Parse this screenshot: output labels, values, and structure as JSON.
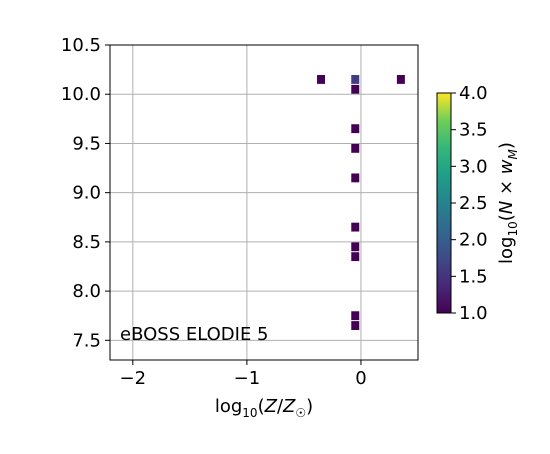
{
  "chart_data": {
    "type": "heatmap",
    "xlabel": "log10(Z/Z⊙)",
    "annotation": "eBOSS ELODIE 5",
    "xlim": [
      -2.2,
      0.5
    ],
    "ylim": [
      7.3,
      10.5
    ],
    "xticks": [
      -2,
      -1,
      0
    ],
    "xtick_labels": [
      "−2",
      "−1",
      "0"
    ],
    "yticks": [
      7.5,
      8.0,
      8.5,
      9.0,
      9.5,
      10.0,
      10.5
    ],
    "ytick_labels": [
      "7.5",
      "8.0",
      "8.5",
      "9.0",
      "9.5",
      "10.0",
      "10.5"
    ],
    "grid": true,
    "colorbar": {
      "label": "log10(N × wM)",
      "range": [
        1.0,
        4.0
      ],
      "ticks": [
        1.0,
        1.5,
        2.0,
        2.5,
        3.0,
        3.5,
        4.0
      ],
      "tick_labels": [
        "1.0",
        "1.5",
        "2.0",
        "2.5",
        "3.0",
        "3.5",
        "4.0"
      ],
      "colormap": "viridis"
    },
    "cell_size": {
      "dx": 0.07,
      "dy": 0.09
    },
    "points": [
      {
        "x": -0.35,
        "y": 10.15,
        "value": 1.0
      },
      {
        "x": -0.05,
        "y": 10.15,
        "value": 1.6
      },
      {
        "x": 0.35,
        "y": 10.15,
        "value": 1.0
      },
      {
        "x": -0.05,
        "y": 10.05,
        "value": 1.0
      },
      {
        "x": -0.05,
        "y": 9.65,
        "value": 1.0
      },
      {
        "x": -0.05,
        "y": 9.45,
        "value": 1.0
      },
      {
        "x": -0.05,
        "y": 9.15,
        "value": 1.0
      },
      {
        "x": -0.05,
        "y": 8.65,
        "value": 1.0
      },
      {
        "x": -0.05,
        "y": 8.45,
        "value": 1.0
      },
      {
        "x": -0.05,
        "y": 8.35,
        "value": 1.0
      },
      {
        "x": -0.05,
        "y": 7.75,
        "value": 1.0
      },
      {
        "x": -0.05,
        "y": 7.65,
        "value": 1.0
      }
    ]
  }
}
